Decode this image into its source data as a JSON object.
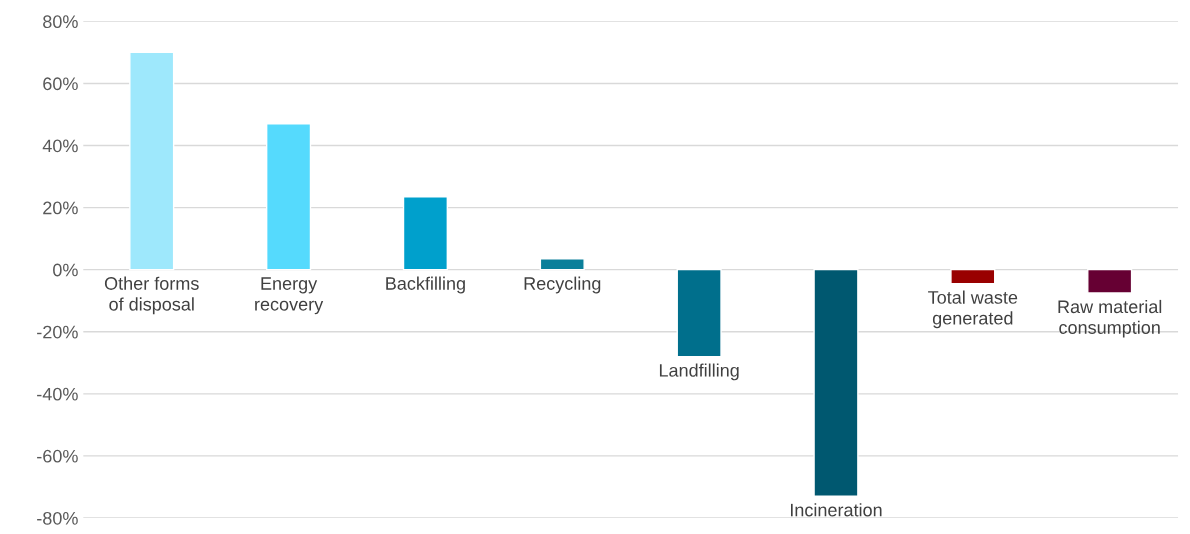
{
  "chart_data": {
    "type": "bar",
    "categories": [
      "Other forms\nof disposal",
      "Energy\nrecovery",
      "Backfilling",
      "Recycling",
      "Landfilling",
      "Incineration",
      "Total waste\ngenerated",
      "Raw material\nconsumption"
    ],
    "values": [
      70,
      47,
      23.5,
      3.5,
      -28,
      -73,
      -4.5,
      -7.5
    ],
    "colors": [
      "#9ee8fc",
      "#55dafd",
      "#00a0cc",
      "#0a7f9a",
      "#006f8c",
      "#005870",
      "#990000",
      "#660033"
    ],
    "ylim": [
      -80,
      80
    ],
    "yticks": [
      {
        "value": -80,
        "label": "-80%"
      },
      {
        "value": -60,
        "label": "-60%"
      },
      {
        "value": -40,
        "label": "-40%"
      },
      {
        "value": -20,
        "label": "-20%"
      },
      {
        "value": 0,
        "label": "0%"
      },
      {
        "value": 20,
        "label": "20%"
      },
      {
        "value": 40,
        "label": "40%"
      },
      {
        "value": 60,
        "label": "60%"
      },
      {
        "value": 80,
        "label": "80%"
      }
    ],
    "grid": "y"
  }
}
